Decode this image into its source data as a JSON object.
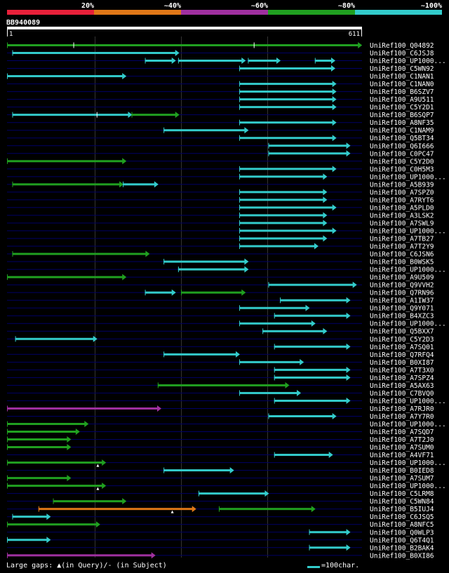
{
  "legend": [
    {
      "label": "20%",
      "color": "#e8203a"
    },
    {
      "label": "~40%",
      "color": "#e07818"
    },
    {
      "label": "~60%",
      "color": "#a030a0"
    },
    {
      "label": "~80%",
      "color": "#20a020"
    },
    {
      "label": "~100%",
      "color": "#33cccc"
    }
  ],
  "query": {
    "name": "BB940089",
    "start": "1",
    "end": "611",
    "length": 611
  },
  "colors": {
    "red": "#e8203a",
    "orange": "#e07818",
    "purple": "#a030a0",
    "green": "#20a020",
    "cyan": "#33cccc"
  },
  "hits": [
    {
      "name": "UniRef100_Q04892",
      "segs": [
        [
          1,
          610,
          "green"
        ]
      ],
      "ticks": [
        115,
        425
      ]
    },
    {
      "name": "UniRef100_C6JSJ8",
      "segs": [
        [
          10,
          296,
          "cyan"
        ]
      ]
    },
    {
      "name": "UniRef100_UP1000...",
      "segs": [
        [
          238,
          290,
          "cyan"
        ],
        [
          295,
          410,
          "cyan"
        ],
        [
          415,
          470,
          "cyan"
        ],
        [
          530,
          564,
          "cyan"
        ]
      ]
    },
    {
      "name": "UniRef100_C5WN92",
      "segs": [
        [
          400,
          564,
          "cyan"
        ]
      ]
    },
    {
      "name": "UniRef100_C1NAN1",
      "segs": [
        [
          1,
          205,
          "cyan"
        ]
      ]
    },
    {
      "name": "UniRef100_C1NAN0",
      "segs": [
        [
          400,
          566,
          "cyan"
        ]
      ]
    },
    {
      "name": "UniRef100_B6SZV7",
      "segs": [
        [
          400,
          566,
          "cyan"
        ]
      ]
    },
    {
      "name": "UniRef100_A9U511",
      "segs": [
        [
          400,
          566,
          "cyan"
        ]
      ]
    },
    {
      "name": "UniRef100_C5Y2D1",
      "segs": [
        [
          400,
          566,
          "cyan"
        ]
      ]
    },
    {
      "name": "UniRef100_B6SQP7",
      "segs": [
        [
          10,
          215,
          "cyan"
        ],
        [
          215,
          296,
          "green"
        ]
      ],
      "ticks": [
        155
      ]
    },
    {
      "name": "UniRef100_A8NF35",
      "segs": [
        [
          400,
          566,
          "cyan"
        ]
      ]
    },
    {
      "name": "UniRef100_C1NAM9",
      "segs": [
        [
          270,
          415,
          "cyan"
        ]
      ]
    },
    {
      "name": "UniRef100_Q5BT34",
      "segs": [
        [
          400,
          566,
          "cyan"
        ]
      ]
    },
    {
      "name": "UniRef100_Q6I666",
      "segs": [
        [
          450,
          590,
          "cyan"
        ]
      ]
    },
    {
      "name": "UniRef100_C0PC47",
      "segs": [
        [
          450,
          590,
          "cyan"
        ]
      ]
    },
    {
      "name": "UniRef100_C5Y2D0",
      "segs": [
        [
          1,
          205,
          "green"
        ]
      ]
    },
    {
      "name": "UniRef100_C0H5M3",
      "segs": [
        [
          400,
          566,
          "cyan"
        ]
      ]
    },
    {
      "name": "UniRef100_UP1000...",
      "segs": [
        [
          400,
          550,
          "cyan"
        ]
      ]
    },
    {
      "name": "UniRef100_A5B939",
      "segs": [
        [
          10,
          200,
          "green"
        ],
        [
          200,
          260,
          "cyan"
        ]
      ]
    },
    {
      "name": "UniRef100_A7SPZ0",
      "segs": [
        [
          400,
          550,
          "cyan"
        ]
      ]
    },
    {
      "name": "UniRef100_A7RYT6",
      "segs": [
        [
          400,
          550,
          "cyan"
        ]
      ]
    },
    {
      "name": "UniRef100_A5PLD0",
      "segs": [
        [
          400,
          566,
          "cyan"
        ]
      ]
    },
    {
      "name": "UniRef100_A3LSK2",
      "segs": [
        [
          400,
          550,
          "cyan"
        ]
      ]
    },
    {
      "name": "UniRef100_A7SWL9",
      "segs": [
        [
          400,
          550,
          "cyan"
        ]
      ]
    },
    {
      "name": "UniRef100_UP1000...",
      "segs": [
        [
          400,
          566,
          "cyan"
        ]
      ]
    },
    {
      "name": "UniRef100_A7TB27",
      "segs": [
        [
          400,
          550,
          "cyan"
        ]
      ]
    },
    {
      "name": "UniRef100_A7T2Y9",
      "segs": [
        [
          400,
          535,
          "cyan"
        ]
      ]
    },
    {
      "name": "UniRef100_C6JSN6",
      "segs": [
        [
          10,
          245,
          "green"
        ]
      ]
    },
    {
      "name": "UniRef100_B0WSK5",
      "segs": [
        [
          270,
          415,
          "cyan"
        ]
      ]
    },
    {
      "name": "UniRef100_UP1000...",
      "segs": [
        [
          295,
          415,
          "cyan"
        ]
      ]
    },
    {
      "name": "UniRef100_A9U509",
      "segs": [
        [
          1,
          205,
          "green"
        ]
      ]
    },
    {
      "name": "UniRef100_Q9VVH2",
      "segs": [
        [
          450,
          601,
          "cyan"
        ]
      ]
    },
    {
      "name": "UniRef100_Q7RN96",
      "segs": [
        [
          238,
          290,
          "cyan"
        ],
        [
          300,
          410,
          "green"
        ]
      ]
    },
    {
      "name": "UniRef100_A1IW37",
      "segs": [
        [
          470,
          590,
          "cyan"
        ]
      ]
    },
    {
      "name": "UniRef100_Q9Y071",
      "segs": [
        [
          400,
          520,
          "cyan"
        ]
      ]
    },
    {
      "name": "UniRef100_B4XZC3",
      "segs": [
        [
          460,
          590,
          "cyan"
        ]
      ]
    },
    {
      "name": "UniRef100_UP1000...",
      "segs": [
        [
          400,
          530,
          "cyan"
        ]
      ]
    },
    {
      "name": "UniRef100_Q5BXX7",
      "segs": [
        [
          440,
          550,
          "cyan"
        ]
      ]
    },
    {
      "name": "UniRef100_C5Y2D3",
      "segs": [
        [
          15,
          155,
          "cyan"
        ]
      ]
    },
    {
      "name": "UniRef100_A7SQ01",
      "segs": [
        [
          460,
          590,
          "cyan"
        ]
      ]
    },
    {
      "name": "UniRef100_Q7RFQ4",
      "segs": [
        [
          270,
          400,
          "cyan"
        ]
      ]
    },
    {
      "name": "UniRef100_B0XI87",
      "segs": [
        [
          400,
          510,
          "cyan"
        ]
      ]
    },
    {
      "name": "UniRef100_A7T3X0",
      "segs": [
        [
          460,
          590,
          "cyan"
        ]
      ]
    },
    {
      "name": "UniRef100_A7SPZ4",
      "segs": [
        [
          460,
          590,
          "cyan"
        ]
      ]
    },
    {
      "name": "UniRef100_A5AX63",
      "segs": [
        [
          260,
          485,
          "green"
        ]
      ]
    },
    {
      "name": "UniRef100_C7BVQ0",
      "segs": [
        [
          400,
          505,
          "cyan"
        ]
      ]
    },
    {
      "name": "UniRef100_UP1000...",
      "segs": [
        [
          460,
          590,
          "cyan"
        ]
      ]
    },
    {
      "name": "UniRef100_A7RJR0",
      "segs": [
        [
          1,
          265,
          "purple"
        ]
      ]
    },
    {
      "name": "UniRef100_A7Y7R0",
      "segs": [
        [
          450,
          566,
          "cyan"
        ]
      ]
    },
    {
      "name": "UniRef100_UP1000...",
      "segs": [
        [
          1,
          140,
          "green"
        ]
      ]
    },
    {
      "name": "UniRef100_A7SQD7",
      "segs": [
        [
          1,
          125,
          "green"
        ]
      ]
    },
    {
      "name": "UniRef100_A7T2J0",
      "segs": [
        [
          1,
          110,
          "green"
        ]
      ]
    },
    {
      "name": "UniRef100_A7SUM0",
      "segs": [
        [
          1,
          110,
          "green"
        ]
      ]
    },
    {
      "name": "UniRef100_A4VF71",
      "segs": [
        [
          460,
          560,
          "cyan"
        ]
      ]
    },
    {
      "name": "UniRef100_UP1000...",
      "segs": [
        [
          1,
          170,
          "green"
        ]
      ],
      "tri": [
        157
      ]
    },
    {
      "name": "UniRef100_B0IED8",
      "segs": [
        [
          270,
          390,
          "cyan"
        ]
      ]
    },
    {
      "name": "UniRef100_A7SUM7",
      "segs": [
        [
          1,
          110,
          "green"
        ]
      ]
    },
    {
      "name": "UniRef100_UP1000...",
      "segs": [
        [
          1,
          170,
          "green"
        ]
      ],
      "tri": [
        157
      ]
    },
    {
      "name": "UniRef100_C5LRM8",
      "segs": [
        [
          330,
          450,
          "cyan"
        ]
      ]
    },
    {
      "name": "UniRef100_C5WN84",
      "segs": [
        [
          80,
          205,
          "green"
        ]
      ]
    },
    {
      "name": "UniRef100_B5IUJ4",
      "segs": [
        [
          55,
          325,
          "orange"
        ],
        [
          365,
          530,
          "green"
        ]
      ],
      "tri": [
        285
      ]
    },
    {
      "name": "UniRef100_C6JSQ5",
      "segs": [
        [
          10,
          75,
          "cyan"
        ]
      ]
    },
    {
      "name": "UniRef100_A8NFC5",
      "segs": [
        [
          1,
          160,
          "green"
        ]
      ]
    },
    {
      "name": "UniRef100_Q0WLP3",
      "segs": [
        [
          520,
          590,
          "cyan"
        ]
      ]
    },
    {
      "name": "UniRef100_Q6T4Q1",
      "segs": [
        [
          1,
          75,
          "cyan"
        ]
      ]
    },
    {
      "name": "UniRef100_B2BAK4",
      "segs": [
        [
          520,
          590,
          "cyan"
        ]
      ]
    },
    {
      "name": "UniRef100_B0XI86",
      "segs": [
        [
          1,
          255,
          "purple"
        ]
      ]
    }
  ],
  "footer": {
    "gaps_text": "Large gaps: ▲(in Query)/- (in Subject)",
    "scale_text": "=100char."
  }
}
